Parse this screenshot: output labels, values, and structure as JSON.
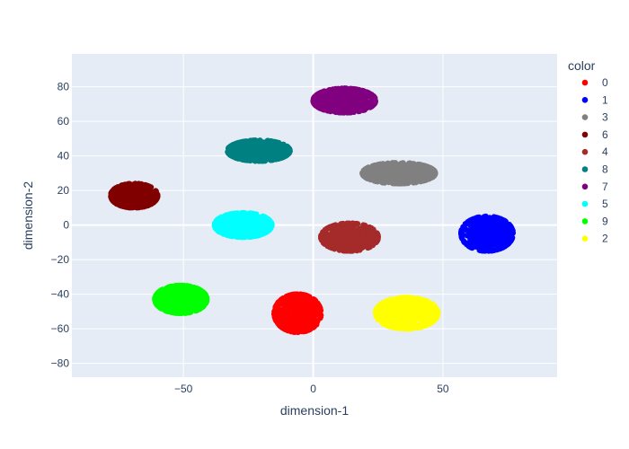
{
  "chart_data": {
    "type": "scatter",
    "xlabel": "dimension-1",
    "ylabel": "dimension-2",
    "xlim": [
      -93,
      94
    ],
    "ylim": [
      -88,
      99
    ],
    "xticks": [
      -50,
      0,
      50
    ],
    "yticks": [
      -80,
      -60,
      -40,
      -20,
      0,
      20,
      40,
      60,
      80
    ],
    "grid": true,
    "legend": {
      "title": "color",
      "placement": "right"
    },
    "series": [
      {
        "name": "0",
        "color": "#ff0000",
        "center": [
          -6,
          -51
        ],
        "spread": [
          9,
          11
        ],
        "count": 520
      },
      {
        "name": "1",
        "color": "#0000ff",
        "center": [
          67,
          -5
        ],
        "spread": [
          10,
          10
        ],
        "count": 520
      },
      {
        "name": "3",
        "color": "#808080",
        "center": [
          33,
          30
        ],
        "spread": [
          14,
          6
        ],
        "count": 520
      },
      {
        "name": "6",
        "color": "#800000",
        "center": [
          -69,
          17
        ],
        "spread": [
          9,
          7
        ],
        "count": 460
      },
      {
        "name": "4",
        "color": "#a52a2a",
        "center": [
          14,
          -7
        ],
        "spread": [
          11,
          8
        ],
        "count": 480
      },
      {
        "name": "8",
        "color": "#008080",
        "center": [
          -21,
          43
        ],
        "spread": [
          12,
          6
        ],
        "count": 500
      },
      {
        "name": "7",
        "color": "#800080",
        "center": [
          12,
          72
        ],
        "spread": [
          12,
          7
        ],
        "count": 520
      },
      {
        "name": "5",
        "color": "#00ffff",
        "center": [
          -27,
          0
        ],
        "spread": [
          11,
          7
        ],
        "count": 480
      },
      {
        "name": "9",
        "color": "#00ff00",
        "center": [
          -51,
          -43
        ],
        "spread": [
          10,
          8
        ],
        "count": 520
      },
      {
        "name": "2",
        "color": "#ffff00",
        "center": [
          36,
          -51
        ],
        "spread": [
          12,
          9
        ],
        "count": 520
      }
    ]
  }
}
